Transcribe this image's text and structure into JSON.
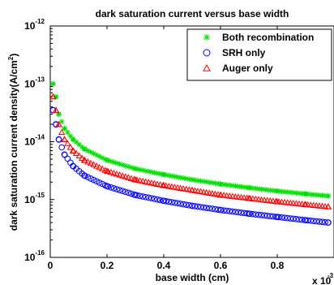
{
  "chart_data": {
    "type": "scatter",
    "title": "dark saturation current versus base width",
    "xlabel": "base width (cm)",
    "ylabel": "dark saturation current density(A/cm",
    "ylabel_superscript": "2",
    "ylabel_close": ")",
    "x_multiplier_text": "x 10",
    "x_multiplier_exponent": "-3",
    "x_range": [
      0,
      1
    ],
    "y_range": [
      1e-16,
      1e-12
    ],
    "y_scale": "log",
    "x_ticks": [
      0,
      0.2,
      0.4,
      0.6,
      0.8
    ],
    "x_tick_labels": [
      "0",
      "0.2",
      "0.4",
      "0.6",
      "0.8"
    ],
    "y_ticks": [
      1e-16,
      1e-15,
      1e-14,
      1e-13,
      1e-12
    ],
    "y_tick_base": "10",
    "y_tick_exponents": [
      "-16",
      "-15",
      "-14",
      "-13",
      "-12"
    ],
    "grid": false,
    "legend_position": "top-right",
    "series": [
      {
        "name": "Both recombination",
        "marker": "star",
        "color": "#00e000",
        "x": [
          0.01,
          0.02,
          0.03,
          0.05,
          0.08,
          0.12,
          0.2,
          0.3,
          0.4,
          0.5,
          0.6,
          0.7,
          0.8,
          0.9,
          0.98
        ],
        "y": [
          1e-13,
          6e-14,
          3e-14,
          1.7e-14,
          1.1e-14,
          7.5e-15,
          4.8e-15,
          3.4e-15,
          2.7e-15,
          2.2e-15,
          1.85e-15,
          1.6e-15,
          1.4e-15,
          1.25e-15,
          1.15e-15
        ]
      },
      {
        "name": "SRH only",
        "marker": "circle",
        "color": "#0000ff",
        "x": [
          0.01,
          0.02,
          0.03,
          0.05,
          0.08,
          0.12,
          0.2,
          0.3,
          0.4,
          0.5,
          0.6,
          0.7,
          0.8,
          0.9,
          0.98
        ],
        "y": [
          3.5e-14,
          2e-14,
          1.1e-14,
          6e-15,
          3.8e-15,
          2.6e-15,
          1.7e-15,
          1.2e-15,
          9.5e-16,
          7.8e-16,
          6.6e-16,
          5.7e-16,
          5e-16,
          4.4e-16,
          4e-16
        ]
      },
      {
        "name": "Auger only",
        "marker": "triangle",
        "color": "#ff0000",
        "x": [
          0.01,
          0.02,
          0.03,
          0.05,
          0.08,
          0.12,
          0.2,
          0.3,
          0.4,
          0.5,
          0.6,
          0.7,
          0.8,
          0.9,
          0.98
        ],
        "y": [
          6e-14,
          3.5e-14,
          2e-14,
          1.1e-14,
          7e-15,
          4.8e-15,
          3.1e-15,
          2.2e-15,
          1.75e-15,
          1.45e-15,
          1.2e-15,
          1.05e-15,
          9.2e-16,
          8.2e-16,
          7.5e-16
        ]
      }
    ]
  }
}
